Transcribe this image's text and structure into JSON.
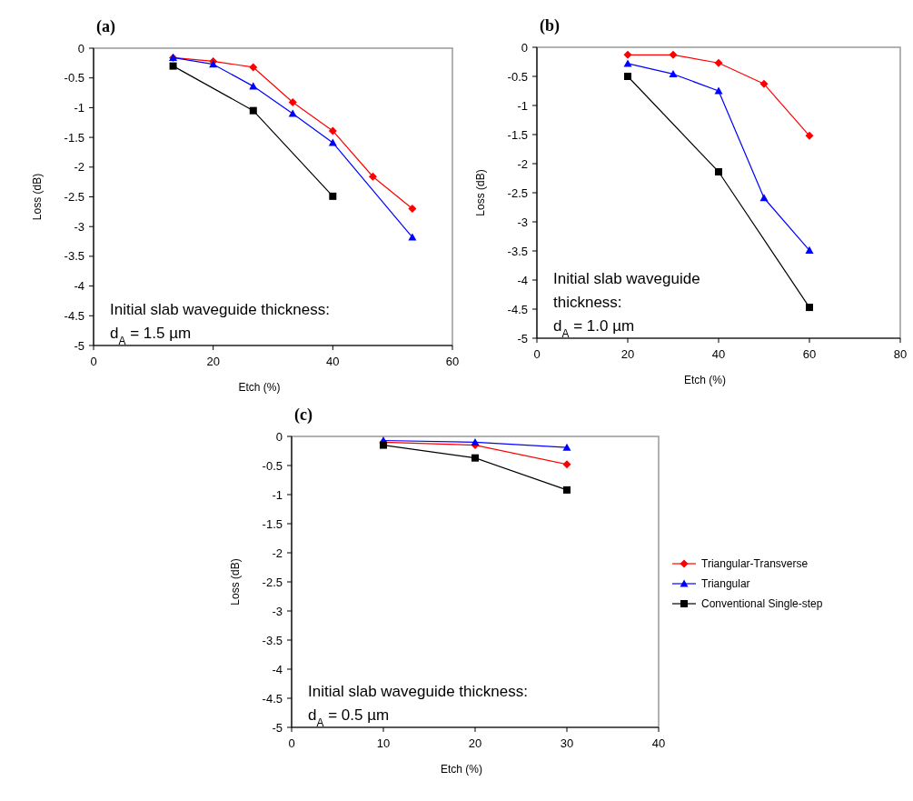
{
  "chart_data": [
    {
      "type": "line",
      "title": "(a)",
      "xlabel": "Etch (%)",
      "ylabel": "Loss (dB)",
      "xlim": [
        0,
        60
      ],
      "xticks": [
        0,
        20,
        40,
        60
      ],
      "ylim": [
        -5,
        0
      ],
      "yticks": [
        0,
        -0.5,
        -1,
        -1.5,
        -2,
        -2.5,
        -3,
        -3.5,
        -4,
        -4.5,
        -5
      ],
      "grid": false,
      "legend": false,
      "annotations": [
        "Initial slab waveguide thickness:",
        "d$_{A}$ = 1.5 µm"
      ],
      "series": [
        {
          "color": "#ff0000",
          "marker": "diamond",
          "x": [
            13.3,
            20,
            26.7,
            33.3,
            40,
            46.7,
            53.3
          ],
          "values": [
            -0.16,
            -0.22,
            -0.32,
            -0.91,
            -1.39,
            -2.16,
            -2.7
          ]
        },
        {
          "color": "#0000ff",
          "marker": "triangle",
          "x": [
            13.3,
            20,
            26.7,
            33.3,
            40,
            53.3
          ],
          "values": [
            -0.16,
            -0.27,
            -0.64,
            -1.1,
            -1.59,
            -3.18
          ]
        },
        {
          "color": "#000000",
          "marker": "square",
          "x": [
            13.3,
            26.7,
            40
          ],
          "values": [
            -0.3,
            -1.05,
            -2.49
          ]
        }
      ]
    },
    {
      "type": "line",
      "title": "(b)",
      "xlabel": "Etch (%)",
      "ylabel": "Loss (dB)",
      "xlim": [
        0,
        80
      ],
      "xticks": [
        0,
        20,
        40,
        60,
        80
      ],
      "ylim": [
        -5,
        0
      ],
      "yticks": [
        0,
        -0.5,
        -1,
        -1.5,
        -2,
        -2.5,
        -3,
        -3.5,
        -4,
        -4.5,
        -5
      ],
      "grid": false,
      "legend": false,
      "annotations": [
        "Initial slab waveguide",
        "thickness:",
        "d$_{A}$ = 1.0 µm"
      ],
      "series": [
        {
          "color": "#ff0000",
          "marker": "diamond",
          "x": [
            20,
            30,
            40,
            50,
            60
          ],
          "values": [
            -0.13,
            -0.13,
            -0.27,
            -0.63,
            -1.52
          ]
        },
        {
          "color": "#0000ff",
          "marker": "triangle",
          "x": [
            20,
            30,
            40,
            50,
            60
          ],
          "values": [
            -0.28,
            -0.46,
            -0.75,
            -2.59,
            -3.49
          ]
        },
        {
          "color": "#000000",
          "marker": "square",
          "x": [
            20,
            40,
            60
          ],
          "values": [
            -0.5,
            -2.14,
            -4.47
          ]
        }
      ]
    },
    {
      "type": "line",
      "title": "(c)",
      "xlabel": "Etch (%)",
      "ylabel": "Loss (dB)",
      "xlim": [
        0,
        40
      ],
      "xticks": [
        0,
        10,
        20,
        30,
        40
      ],
      "ylim": [
        -5,
        0
      ],
      "yticks": [
        0,
        -0.5,
        -1,
        -1.5,
        -2,
        -2.5,
        -3,
        -3.5,
        -4,
        -4.5,
        -5
      ],
      "grid": false,
      "legend": "right",
      "annotations": [
        "Initial slab waveguide thickness:",
        "d$_{A}$ = 0.5 µm"
      ],
      "series": [
        {
          "name": "Triangular-Transverse",
          "color": "#ff0000",
          "marker": "diamond",
          "x": [
            10,
            20,
            30
          ],
          "values": [
            -0.1,
            -0.15,
            -0.48
          ]
        },
        {
          "name": "Triangular",
          "color": "#0000ff",
          "marker": "triangle",
          "x": [
            10,
            20,
            30
          ],
          "values": [
            -0.07,
            -0.1,
            -0.19
          ]
        },
        {
          "name": "Conventional Single-step",
          "color": "#000000",
          "marker": "square",
          "x": [
            10,
            20,
            30
          ],
          "values": [
            -0.15,
            -0.37,
            -0.92
          ]
        }
      ]
    }
  ]
}
